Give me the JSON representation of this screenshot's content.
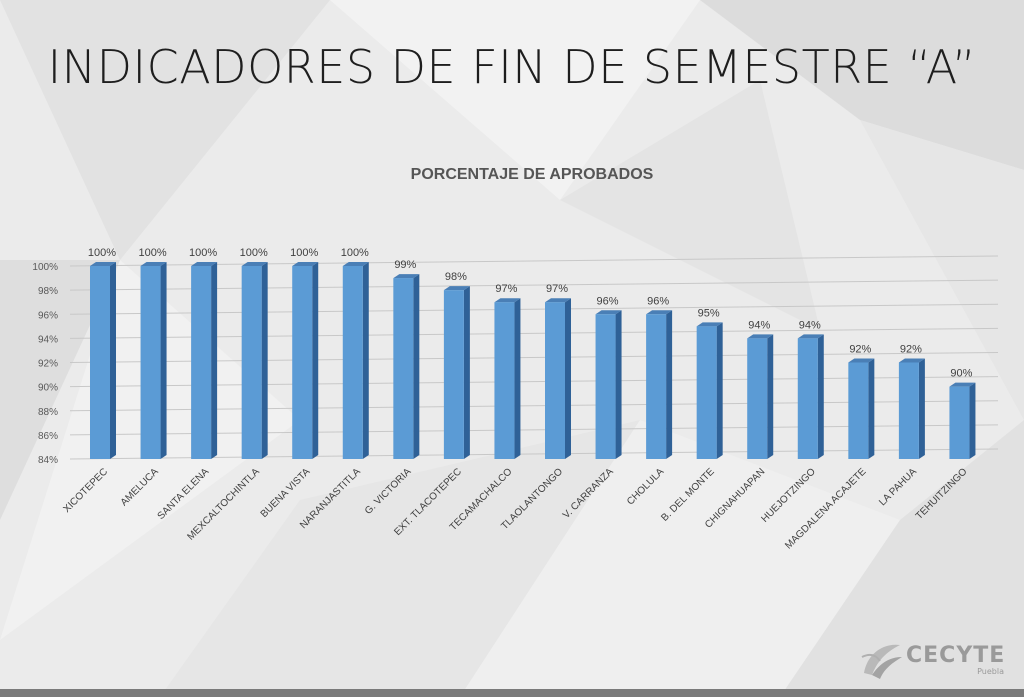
{
  "slide": {
    "title": "INDICADORES DE FIN DE SEMESTRE “A”"
  },
  "logo": {
    "name": "CECYTE",
    "subtitle": "Puebla",
    "icon": "cecyte-leaf-logo"
  },
  "colors": {
    "bar_front": "#5b9bd5",
    "bar_side": "#2f6197",
    "bar_top": "#4a7fb6",
    "text": "#555555"
  },
  "chart_data": {
    "type": "bar",
    "title": "PORCENTAJE DE APROBADOS",
    "xlabel": "",
    "ylabel": "",
    "ylim": [
      84,
      100
    ],
    "y_ticks": [
      "84%",
      "86%",
      "88%",
      "90%",
      "92%",
      "94%",
      "96%",
      "98%",
      "100%"
    ],
    "grid": true,
    "legend": "none",
    "categories": [
      "XICOTEPEC",
      "AMELUCA",
      "SANTA ELENA",
      "MEXCALTOCHINTLA",
      "BUENA VISTA",
      "NARANJASTITLA",
      "G. VICTORIA",
      "EXT. TLACOTEPEC",
      "TECAMACHALCO",
      "TLAOLANTONGO",
      "V. CARRANZA",
      "CHOLULA",
      "B. DEL MONTE",
      "CHIGNAHUAPAN",
      "HUEJOTZINGO",
      "MAGDALENA ACAJETE",
      "LA PAHUA",
      "TEHUITZINGO"
    ],
    "values": [
      100,
      100,
      100,
      100,
      100,
      100,
      99,
      98,
      97,
      97,
      96,
      96,
      95,
      94,
      94,
      92,
      92,
      90
    ],
    "data_labels": [
      "100%",
      "100%",
      "100%",
      "100%",
      "100%",
      "100%",
      "99%",
      "98%",
      "97%",
      "97%",
      "96%",
      "96%",
      "95%",
      "94%",
      "94%",
      "92%",
      "92%",
      "90%"
    ]
  }
}
